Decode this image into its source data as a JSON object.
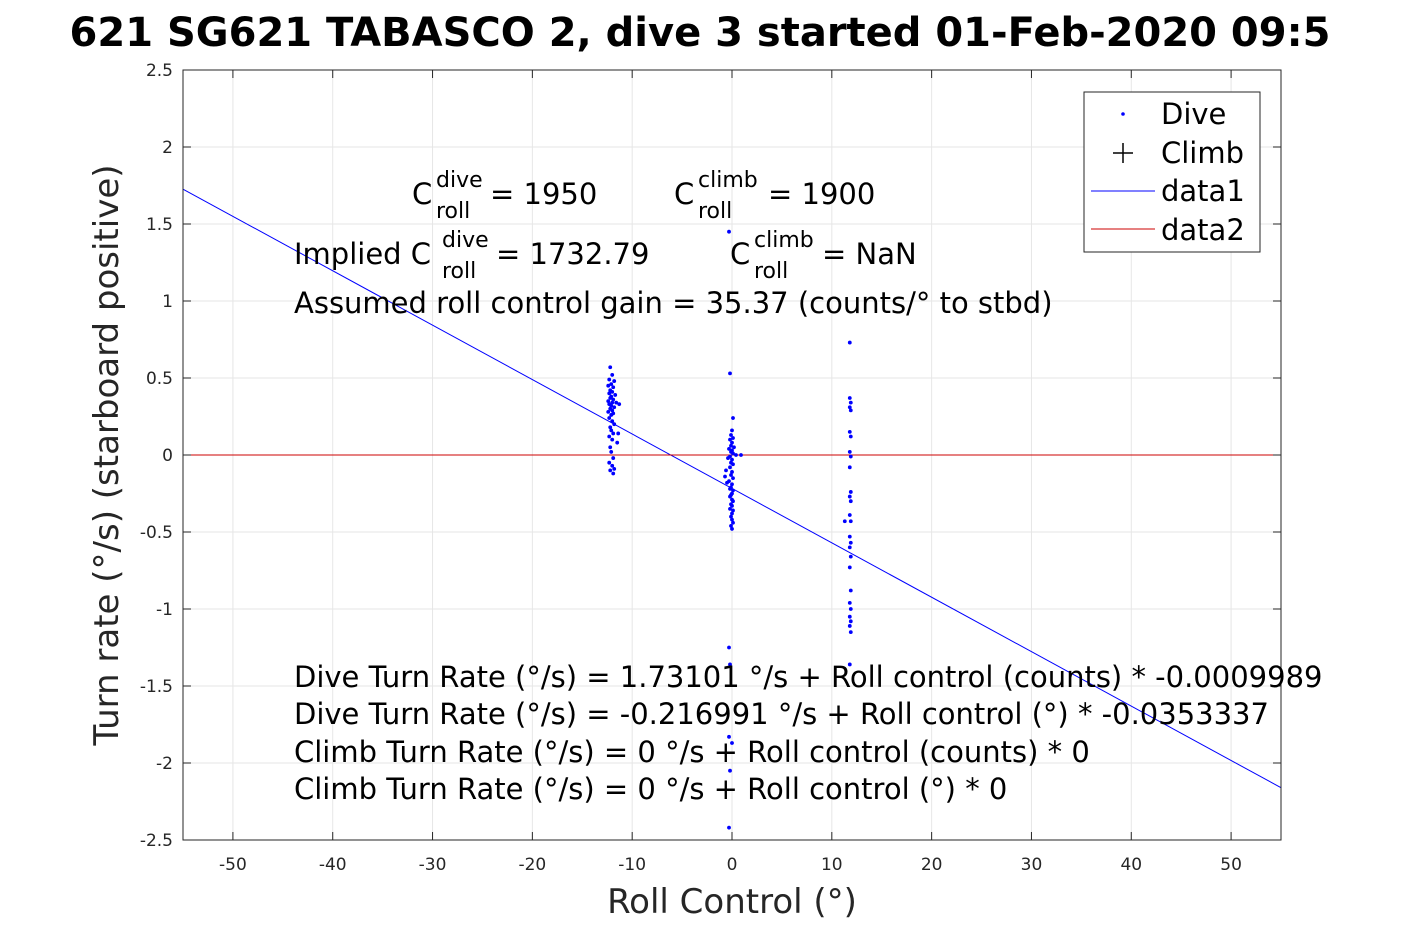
{
  "chart_data": {
    "type": "scatter",
    "title": "621 SG621 TABASCO 2, dive 3 started 01-Feb-2020 09:5",
    "xlabel": "Roll Control (°)",
    "ylabel": "Turn rate (°/s) (starboard positive)",
    "xlim": [
      -55,
      55
    ],
    "ylim": [
      -2.5,
      2.5
    ],
    "grid": true,
    "legend_position": "top-right",
    "x_ticks": [
      "-50",
      "-40",
      "-30",
      "-20",
      "-10",
      "0",
      "10",
      "20",
      "30",
      "40",
      "50"
    ],
    "y_ticks": [
      "2.5",
      "2",
      "1.5",
      "1",
      "0.5",
      "0",
      "-0.5",
      "-1",
      "-1.5",
      "-2",
      "-2.5"
    ],
    "colors": {
      "dive": "#0000ff",
      "data1": "#0000ff",
      "data2": "#cc0000"
    },
    "legend": [
      {
        "label": "Dive",
        "marker": "dot"
      },
      {
        "label": "Climb",
        "marker": "plus"
      },
      {
        "label": "data1",
        "marker": "line-blue"
      },
      {
        "label": "data2",
        "marker": "line-red"
      }
    ],
    "series": [
      {
        "name": "Dive",
        "mode": "markers",
        "points": [
          [
            -12.2,
            0.57
          ],
          [
            -12.0,
            0.52
          ],
          [
            -12.3,
            0.49
          ],
          [
            -11.8,
            0.48
          ],
          [
            -12.1,
            0.46
          ],
          [
            -12.4,
            0.45
          ],
          [
            -11.9,
            0.44
          ],
          [
            -12.2,
            0.42
          ],
          [
            -12.0,
            0.41
          ],
          [
            -12.3,
            0.4
          ],
          [
            -11.7,
            0.39
          ],
          [
            -12.1,
            0.38
          ],
          [
            -12.2,
            0.37
          ],
          [
            -11.9,
            0.36
          ],
          [
            -12.4,
            0.35
          ],
          [
            -12.0,
            0.34
          ],
          [
            -11.6,
            0.34
          ],
          [
            -12.3,
            0.33
          ],
          [
            -12.1,
            0.32
          ],
          [
            -11.8,
            0.31
          ],
          [
            -12.2,
            0.3
          ],
          [
            -12.0,
            0.29
          ],
          [
            -12.4,
            0.28
          ],
          [
            -11.9,
            0.27
          ],
          [
            -12.1,
            0.26
          ],
          [
            -12.3,
            0.24
          ],
          [
            -12.0,
            0.22
          ],
          [
            -11.8,
            0.2
          ],
          [
            -12.2,
            0.18
          ],
          [
            -12.1,
            0.16
          ],
          [
            -11.9,
            0.14
          ],
          [
            -12.3,
            0.12
          ],
          [
            -12.0,
            0.1
          ],
          [
            -11.4,
            0.14
          ],
          [
            -11.3,
            0.33
          ],
          [
            -11.5,
            0.08
          ],
          [
            -12.2,
            0.05
          ],
          [
            -12.1,
            0.02
          ],
          [
            -11.9,
            -0.02
          ],
          [
            -12.3,
            -0.05
          ],
          [
            -12.0,
            -0.07
          ],
          [
            -11.8,
            -0.09
          ],
          [
            -12.2,
            -0.1
          ],
          [
            -11.9,
            -0.12
          ],
          [
            -0.3,
            1.45
          ],
          [
            -0.2,
            0.53
          ],
          [
            0.1,
            0.24
          ],
          [
            0.0,
            0.16
          ],
          [
            -0.1,
            0.13
          ],
          [
            0.1,
            0.11
          ],
          [
            -0.2,
            0.1
          ],
          [
            0.0,
            0.08
          ],
          [
            -0.1,
            0.06
          ],
          [
            0.2,
            0.05
          ],
          [
            -0.3,
            0.04
          ],
          [
            0.0,
            0.03
          ],
          [
            -0.1,
            0.02
          ],
          [
            0.1,
            0.01
          ],
          [
            0.4,
            0.0
          ],
          [
            0.9,
            0.0
          ],
          [
            -0.2,
            -0.01
          ],
          [
            -0.4,
            -0.02
          ],
          [
            0.0,
            -0.03
          ],
          [
            -0.1,
            -0.05
          ],
          [
            0.1,
            -0.06
          ],
          [
            -0.2,
            -0.08
          ],
          [
            -0.6,
            -0.1
          ],
          [
            0.0,
            -0.11
          ],
          [
            -0.1,
            -0.13
          ],
          [
            -0.7,
            -0.14
          ],
          [
            0.1,
            -0.15
          ],
          [
            -0.3,
            -0.17
          ],
          [
            -0.5,
            -0.18
          ],
          [
            0.0,
            -0.19
          ],
          [
            -0.1,
            -0.21
          ],
          [
            -0.2,
            -0.22
          ],
          [
            0.1,
            -0.23
          ],
          [
            0.0,
            -0.25
          ],
          [
            -0.1,
            -0.26
          ],
          [
            -0.2,
            -0.27
          ],
          [
            0.0,
            -0.29
          ],
          [
            0.1,
            -0.3
          ],
          [
            -0.1,
            -0.32
          ],
          [
            0.0,
            -0.33
          ],
          [
            -0.2,
            -0.35
          ],
          [
            0.1,
            -0.36
          ],
          [
            0.0,
            -0.38
          ],
          [
            -0.1,
            -0.4
          ],
          [
            0.0,
            -0.42
          ],
          [
            0.1,
            -0.44
          ],
          [
            -0.1,
            -0.46
          ],
          [
            0.0,
            -0.48
          ],
          [
            -0.3,
            -1.25
          ],
          [
            -0.2,
            -1.36
          ],
          [
            -0.3,
            -1.83
          ],
          [
            0.0,
            -1.87
          ],
          [
            -0.2,
            -2.05
          ],
          [
            -0.3,
            -2.42
          ],
          [
            11.8,
            0.73
          ],
          [
            11.8,
            0.37
          ],
          [
            11.9,
            0.34
          ],
          [
            11.8,
            0.31
          ],
          [
            11.9,
            0.29
          ],
          [
            11.8,
            0.15
          ],
          [
            11.9,
            0.12
          ],
          [
            11.8,
            0.02
          ],
          [
            11.9,
            -0.01
          ],
          [
            11.8,
            -0.08
          ],
          [
            11.9,
            -0.24
          ],
          [
            11.8,
            -0.27
          ],
          [
            11.9,
            -0.3
          ],
          [
            11.8,
            -0.39
          ],
          [
            11.9,
            -0.43
          ],
          [
            11.3,
            -0.43
          ],
          [
            11.8,
            -0.53
          ],
          [
            11.9,
            -0.57
          ],
          [
            11.8,
            -0.6
          ],
          [
            11.9,
            -0.66
          ],
          [
            11.8,
            -0.73
          ],
          [
            11.9,
            -0.88
          ],
          [
            11.8,
            -0.96
          ],
          [
            11.9,
            -1.0
          ],
          [
            11.8,
            -1.05
          ],
          [
            11.9,
            -1.08
          ],
          [
            11.8,
            -1.11
          ],
          [
            11.9,
            -1.15
          ],
          [
            11.8,
            -1.36
          ]
        ]
      },
      {
        "name": "data1",
        "mode": "line",
        "points": [
          [
            -55,
            1.726363
          ],
          [
            55,
            -2.160345
          ]
        ]
      },
      {
        "name": "data2",
        "mode": "line",
        "points": [
          [
            -55,
            0
          ],
          [
            55,
            0
          ]
        ]
      }
    ],
    "annotations": {
      "c_dive": {
        "base": "C",
        "sup": "dive",
        "sub": "roll",
        "rest": " = 1950"
      },
      "c_climb": {
        "base": "C",
        "sup": "climb",
        "sub": "roll",
        "rest": " = 1900"
      },
      "implied_dive": {
        "prefix": "Implied C",
        "sup": "dive",
        "sub": "roll",
        "rest": " = 1732.79"
      },
      "implied_climb": {
        "base": "C",
        "sup": "climb",
        "sub": "roll",
        "rest": " = NaN"
      },
      "gain": "Assumed roll control gain = 35.37 (counts/° to stbd)",
      "eq1": "Dive Turn Rate (°/s) = 1.73101 °/s + Roll control (counts) * -0.0009989",
      "eq2": "Dive Turn Rate (°/s) = -0.216991 °/s + Roll control (°) * -0.0353337",
      "eq3": "Climb Turn Rate (°/s) = 0 °/s + Roll control (counts) * 0",
      "eq4": "Climb Turn Rate (°/s) = 0 °/s + Roll control (°) * 0"
    }
  }
}
